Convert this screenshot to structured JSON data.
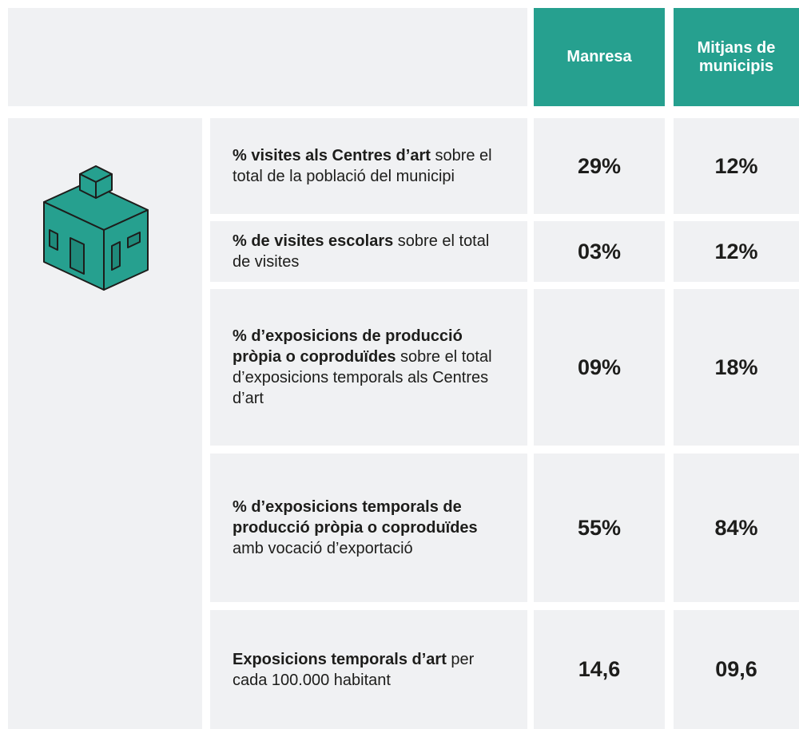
{
  "table": {
    "columns": [
      "Manresa",
      "Mitjans de municipis"
    ],
    "rows": [
      {
        "label_bold": "% visites als Centres d’art",
        "label_rest": "sobre el total de la població del municipi",
        "cells": [
          "29%",
          "12%"
        ]
      },
      {
        "label_bold": "% de visites escolars",
        "label_rest": "sobre el total de visites",
        "cells": [
          "03%",
          "12%"
        ]
      },
      {
        "label_bold": "% d’exposicions de producció pròpia o coproduïdes",
        "label_rest": "sobre el total d’exposicions temporals als Centres d’art",
        "cells": [
          "09%",
          "18%"
        ]
      },
      {
        "label_bold": "% d’exposicions temporals de producció pròpia o coproduïdes",
        "label_rest": "amb vocació d’exportació",
        "cells": [
          "55%",
          "84%"
        ]
      },
      {
        "label_bold": "Exposicions temporals d’art",
        "label_rest": "per cada 100.000 habitant",
        "cells": [
          "14,6",
          "09,6"
        ]
      }
    ]
  }
}
